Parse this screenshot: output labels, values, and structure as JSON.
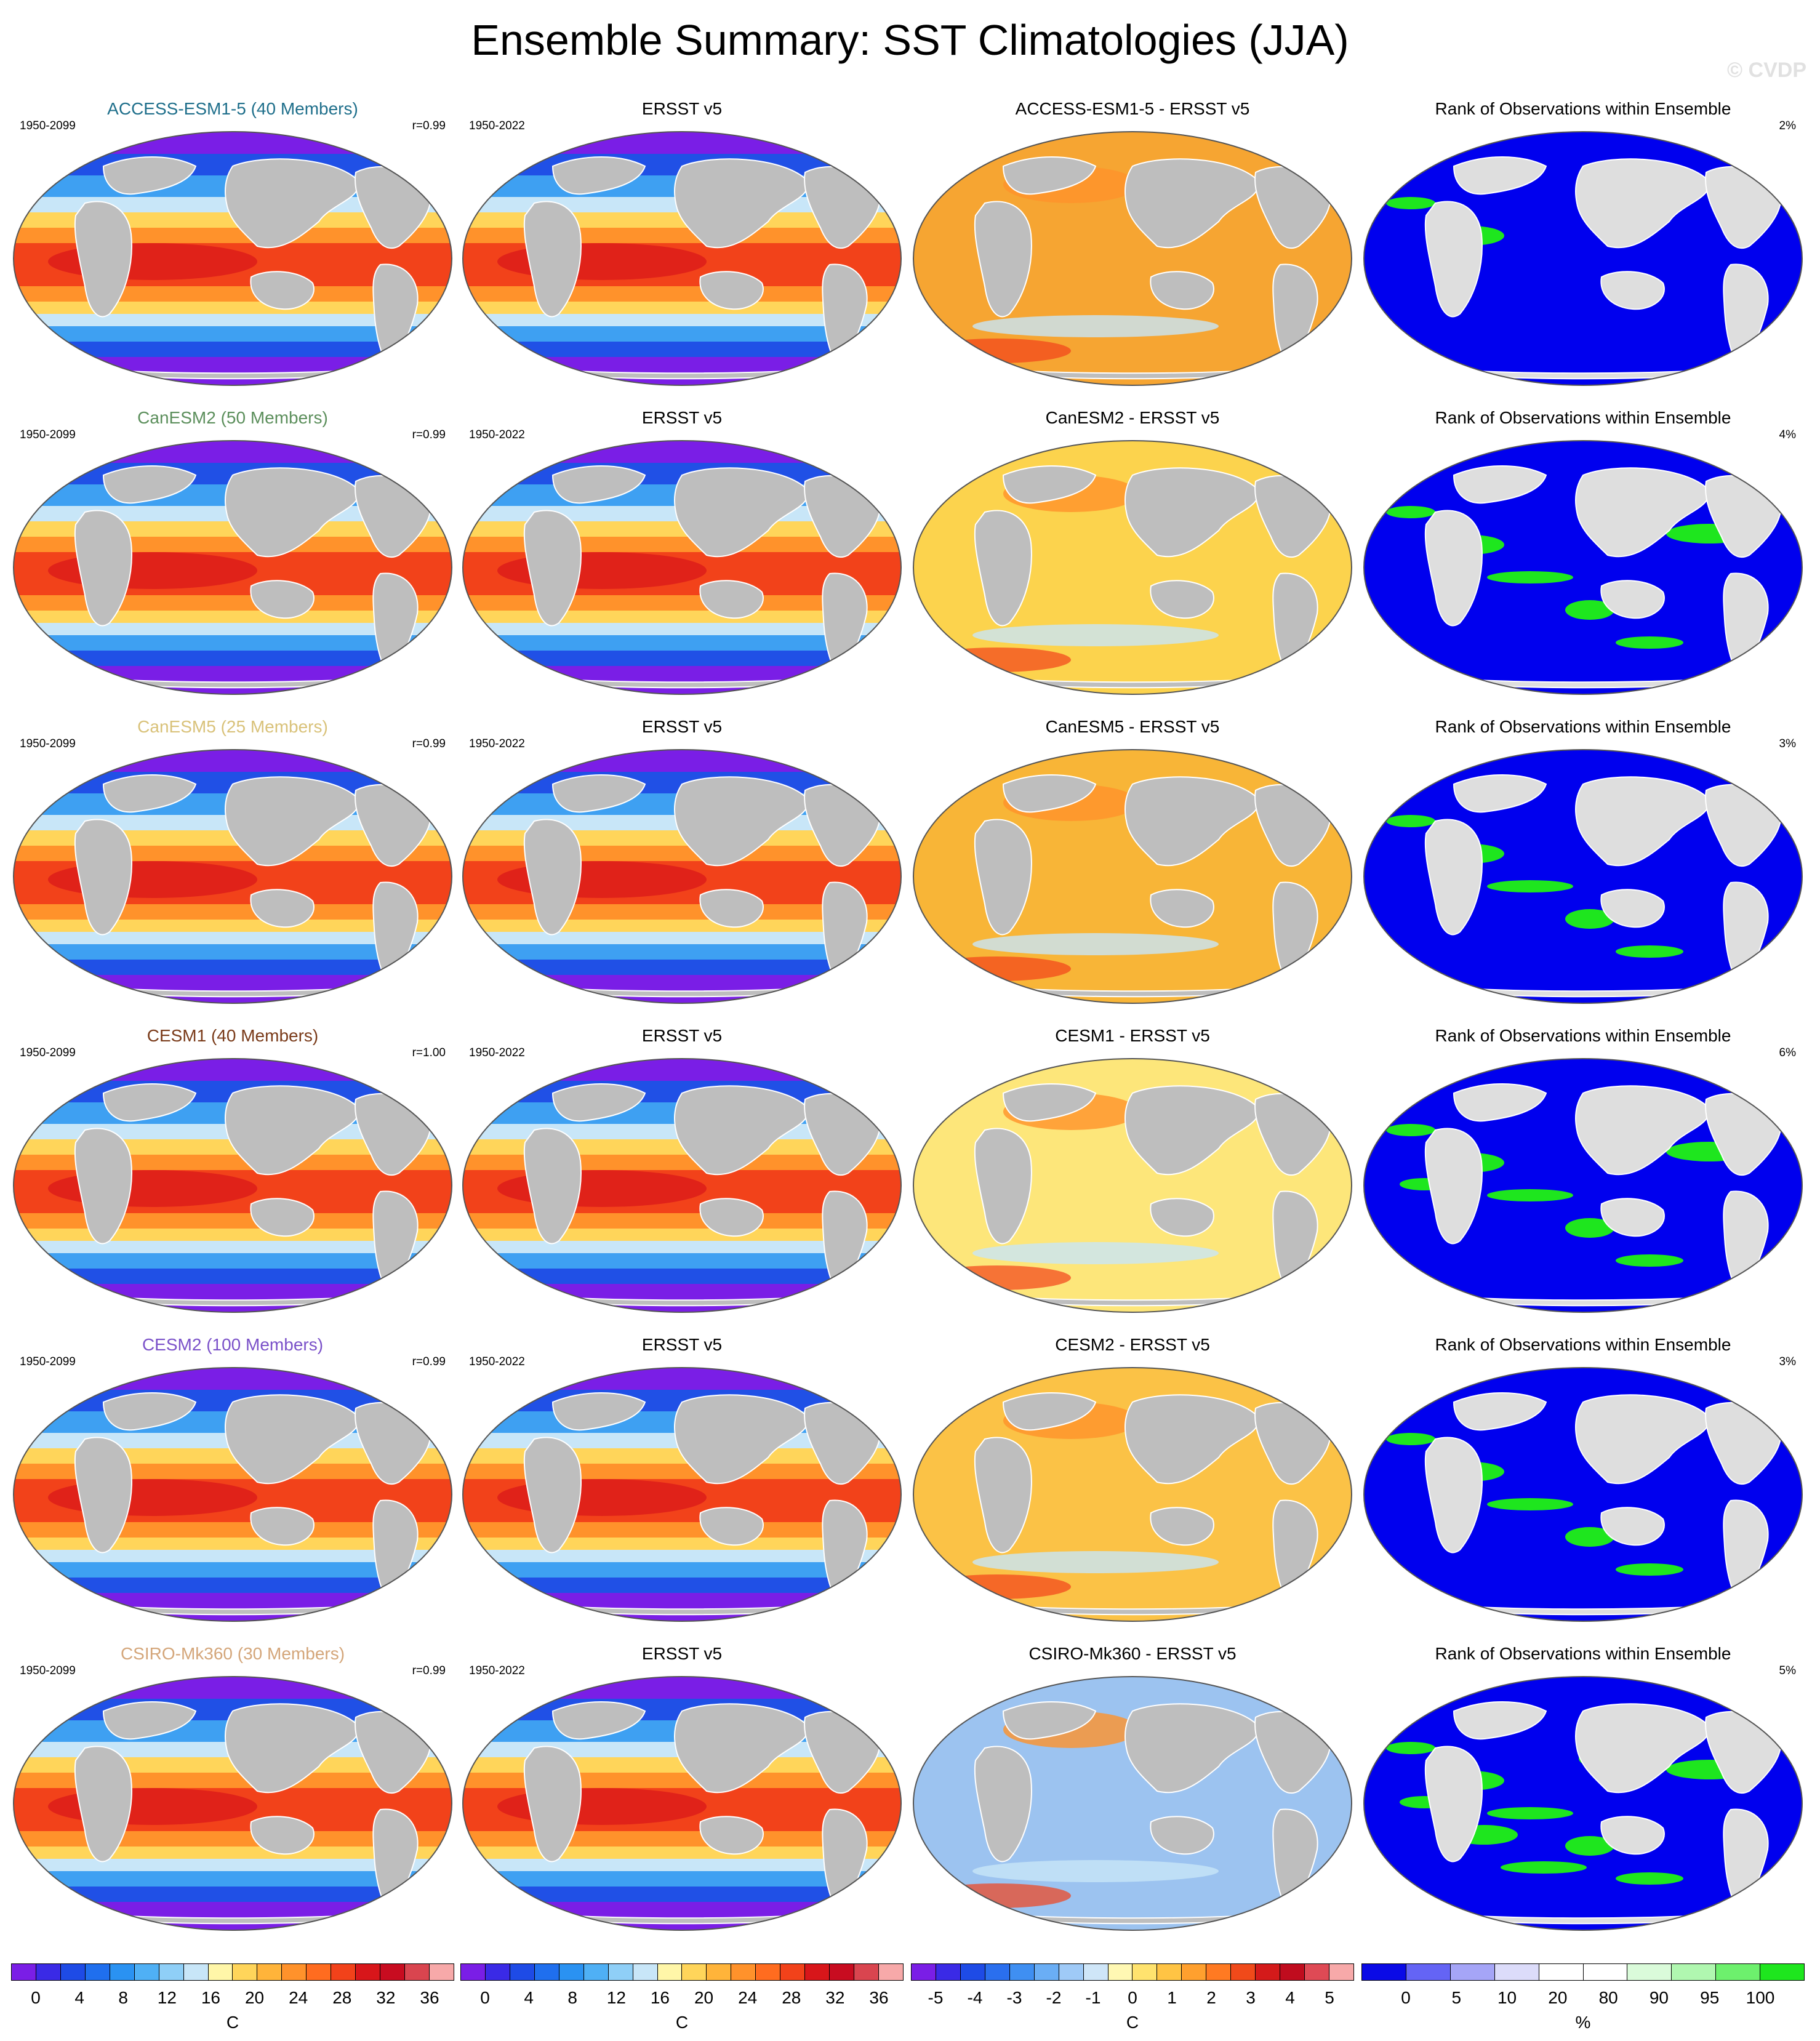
{
  "title": "Ensemble Summary: SST Climatologies (JJA)",
  "watermark": "© CVDP",
  "rows": [
    {
      "model": "ACCESS-ESM1-5 (40 Members)",
      "model_color": "#1f6f8b",
      "model_period": "1950-2099",
      "r": "r=0.99",
      "obs": "ERSST v5",
      "obs_period": "1950-2022",
      "diff": "ACCESS-ESM1-5 - ERSST v5",
      "rank": "Rank of Observations within Ensemble",
      "rank_pct": "2%",
      "diff_fill": "#f6a532",
      "rank_fill": "#0000ee",
      "rank_spots": 2
    },
    {
      "model": "CanESM2 (50 Members)",
      "model_color": "#5c8f5c",
      "model_period": "1950-2099",
      "r": "r=0.99",
      "obs": "ERSST v5",
      "obs_period": "1950-2022",
      "diff": "CanESM2 - ERSST v5",
      "rank": "Rank of Observations within Ensemble",
      "rank_pct": "4%",
      "diff_fill": "#fcd34d",
      "rank_fill": "#0000ee",
      "rank_spots": 6
    },
    {
      "model": "CanESM5 (25 Members)",
      "model_color": "#d9c27a",
      "model_period": "1950-2099",
      "r": "r=0.99",
      "obs": "ERSST v5",
      "obs_period": "1950-2022",
      "diff": "CanESM5 - ERSST v5",
      "rank": "Rank of Observations within Ensemble",
      "rank_pct": "3%",
      "diff_fill": "#f8b537",
      "rank_fill": "#0000ee",
      "rank_spots": 5
    },
    {
      "model": "CESM1 (40 Members)",
      "model_color": "#7a3b1a",
      "model_period": "1950-2099",
      "r": "r=1.00",
      "obs": "ERSST v5",
      "obs_period": "1950-2022",
      "diff": "CESM1 - ERSST v5",
      "rank": "Rank of Observations within Ensemble",
      "rank_pct": "6%",
      "diff_fill": "#fde67a",
      "rank_fill": "#0000ee",
      "rank_spots": 7
    },
    {
      "model": "CESM2 (100 Members)",
      "model_color": "#7b52c9",
      "model_period": "1950-2099",
      "r": "r=0.99",
      "obs": "ERSST v5",
      "obs_period": "1950-2022",
      "diff": "CESM2 - ERSST v5",
      "rank": "Rank of Observations within Ensemble",
      "rank_pct": "3%",
      "diff_fill": "#fbc246",
      "rank_fill": "#0000ee",
      "rank_spots": 5
    },
    {
      "model": "CSIRO-Mk360 (30 Members)",
      "model_color": "#d4a67a",
      "model_period": "1950-2099",
      "r": "r=0.99",
      "obs": "ERSST v5",
      "obs_period": "1950-2022",
      "diff": "CSIRO-Mk360 - ERSST v5",
      "rank": "Rank of Observations within Ensemble",
      "rank_pct": "5%",
      "diff_fill": "#9cc3f0",
      "rank_fill": "#0000ee",
      "rank_spots": 10
    }
  ],
  "colorbars": [
    {
      "colors": [
        "#7a1ee6",
        "#3a2ae6",
        "#1e4be6",
        "#1f6fee",
        "#2a92f2",
        "#4fb0f5",
        "#8fcff7",
        "#c8e6f8",
        "#fff6a8",
        "#ffd55a",
        "#ffb43a",
        "#ff922b",
        "#ff6c1f",
        "#f2421a",
        "#d8161a",
        "#c80c20",
        "#d9454f",
        "#f7a9a9"
      ],
      "ticks": [
        "0",
        "4",
        "8",
        "12",
        "16",
        "20",
        "24",
        "28",
        "32",
        "36"
      ],
      "unit": "C"
    },
    {
      "colors": [
        "#7a1ee6",
        "#3a2ae6",
        "#1e4be6",
        "#1f6fee",
        "#2a92f2",
        "#4fb0f5",
        "#8fcff7",
        "#c8e6f8",
        "#fff6a8",
        "#ffd55a",
        "#ffb43a",
        "#ff922b",
        "#ff6c1f",
        "#f2421a",
        "#d8161a",
        "#c80c20",
        "#d9454f",
        "#f7a9a9"
      ],
      "ticks": [
        "0",
        "4",
        "8",
        "12",
        "16",
        "20",
        "24",
        "28",
        "32",
        "36"
      ],
      "unit": "C"
    },
    {
      "colors": [
        "#7a1ee6",
        "#3a2ae6",
        "#1e4be6",
        "#2a6fee",
        "#3f8ff2",
        "#6aaef5",
        "#9fcaf7",
        "#cfe6f8",
        "#fff8b3",
        "#ffe36e",
        "#ffc444",
        "#ffa02e",
        "#ff7a22",
        "#f04a1a",
        "#d41a1a",
        "#c00c1e",
        "#df4a55",
        "#f7a9a9"
      ],
      "ticks": [
        "-5",
        "-4",
        "-3",
        "-2",
        "-1",
        "0",
        "1",
        "2",
        "3",
        "4",
        "5"
      ],
      "unit": "C"
    },
    {
      "colors": [
        "#0a0ae6",
        "#6464f5",
        "#a5a5f7",
        "#dcdcfa",
        "#ffffff",
        "#ffffff",
        "#dafbda",
        "#b0f7b0",
        "#6df06d",
        "#1ee61e"
      ],
      "ticks": [
        "0",
        "5",
        "10",
        "20",
        "80",
        "90",
        "95",
        "100"
      ],
      "unit": "%"
    }
  ],
  "map_colors": {
    "land": "#bebebe",
    "rank_land": "#dedede",
    "polar": "#7a1ee6",
    "cold": "#2050e6",
    "cool": "#3ea0f2",
    "mild": "#c8e6f8",
    "warm_yellow": "#ffd55a",
    "warm_orange": "#ff922b",
    "hot": "#f2421a",
    "very_hot": "#d8161a",
    "rank_high": "#1ee61e"
  }
}
